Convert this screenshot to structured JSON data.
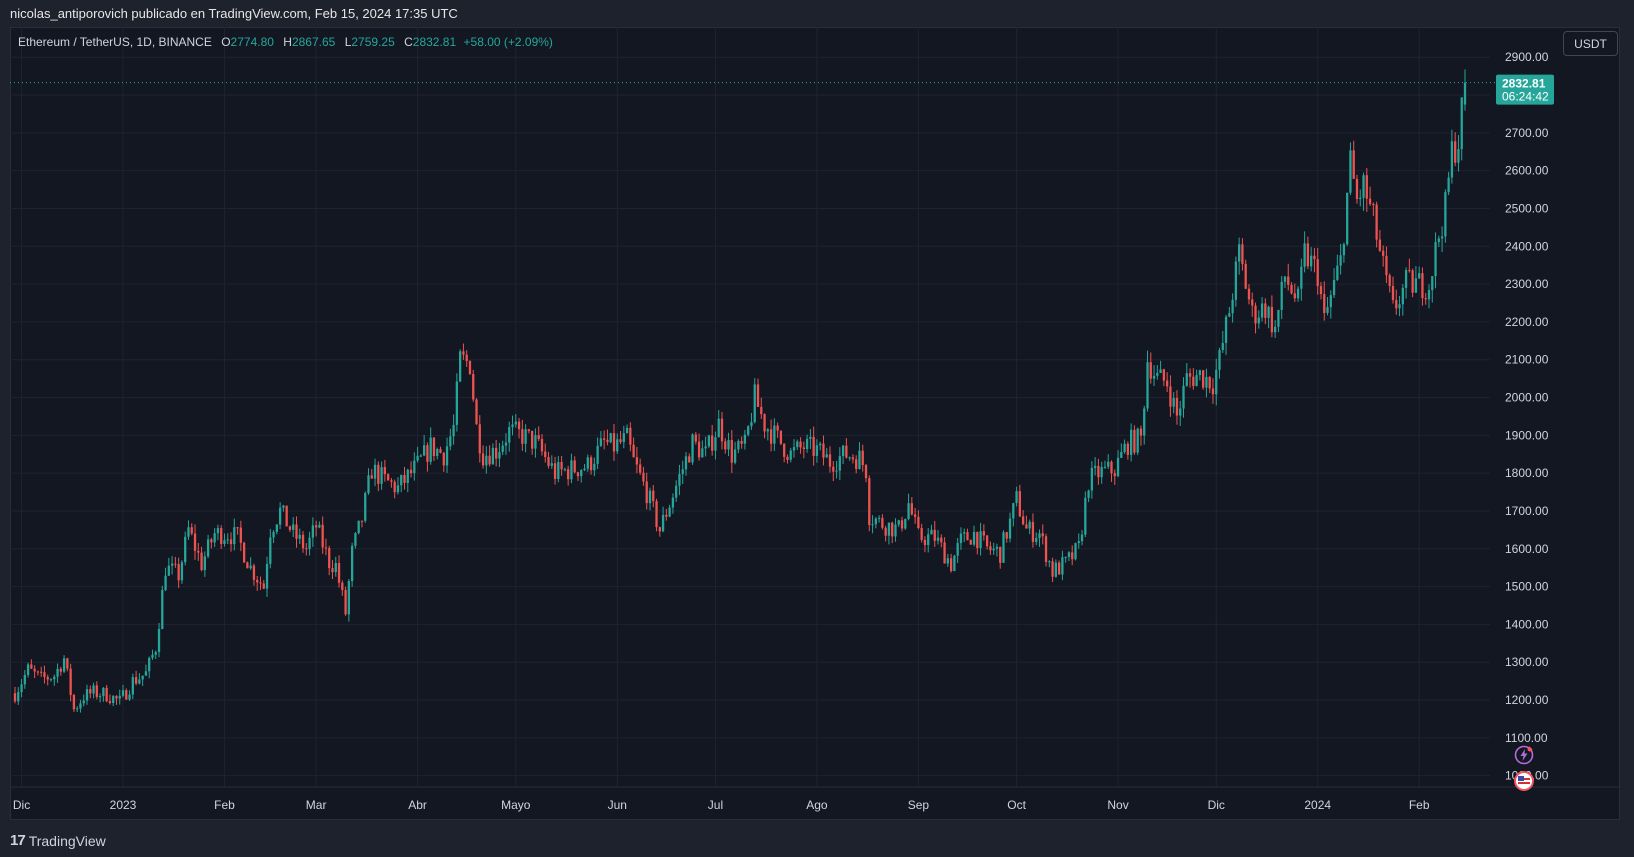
{
  "header": {
    "publisher_line": "nicolas_antiporovich publicado en TradingView.com, Feb 15, 2024 17:35 UTC"
  },
  "legend": {
    "symbol": "Ethereum / TetherUS, 1D, BINANCE",
    "open_label": "O",
    "open_value": "2774.80",
    "high_label": "H",
    "high_value": "2867.65",
    "low_label": "L",
    "low_value": "2759.25",
    "close_label": "C",
    "close_value": "2832.81",
    "change": "+58.00 (+2.09%)"
  },
  "price_scale": {
    "currency": "USDT",
    "last_price": "2832.81",
    "countdown": "06:24:42"
  },
  "footer": {
    "brand": "TradingView",
    "brand_mark": "17"
  },
  "colors": {
    "up": "#26a69a",
    "down": "#ef5350",
    "background": "#131722",
    "grid": "#1e222d",
    "text": "#d1d4dc"
  },
  "icons": [
    "lightning-icon",
    "us-flag-icon"
  ],
  "chart_data": {
    "type": "candlestick",
    "ylim": [
      970,
      2980
    ],
    "y_ticks": [
      1000,
      1100,
      1200,
      1300,
      1400,
      1500,
      1600,
      1700,
      1800,
      1900,
      2000,
      2100,
      2200,
      2300,
      2400,
      2500,
      2600,
      2700,
      2800,
      2900
    ],
    "y_tick_labels": [
      "1000.00",
      "1100.00",
      "1200.00",
      "1300.00",
      "1400.00",
      "1500.00",
      "1600.00",
      "1700.00",
      "1800.00",
      "1900.00",
      "2000.00",
      "2100.00",
      "2200.00",
      "2300.00",
      "2400.00",
      "2500.00",
      "2600.00",
      "2700.00",
      "2800.00",
      "2900.00"
    ],
    "x_start": "2022-11-29",
    "x_end": "2024-02-15",
    "x_ticks": [
      {
        "label": "Dic",
        "date": "2022-12-01"
      },
      {
        "label": "2023",
        "date": "2023-01-01"
      },
      {
        "label": "Feb",
        "date": "2023-02-01"
      },
      {
        "label": "Mar",
        "date": "2023-03-01"
      },
      {
        "label": "Abr",
        "date": "2023-04-01"
      },
      {
        "label": "Mayo",
        "date": "2023-05-01"
      },
      {
        "label": "Jun",
        "date": "2023-06-01"
      },
      {
        "label": "Jul",
        "date": "2023-07-01"
      },
      {
        "label": "Ago",
        "date": "2023-08-01"
      },
      {
        "label": "Sep",
        "date": "2023-09-01"
      },
      {
        "label": "Oct",
        "date": "2023-10-01"
      },
      {
        "label": "Nov",
        "date": "2023-11-01"
      },
      {
        "label": "Dic",
        "date": "2023-12-01"
      },
      {
        "label": "2024",
        "date": "2024-01-01"
      },
      {
        "label": "Feb",
        "date": "2024-02-01"
      }
    ],
    "last_close": 2832.81,
    "close_path": [
      [
        "2022-11-29",
        1218
      ],
      [
        "2022-12-03",
        1280
      ],
      [
        "2022-12-07",
        1255
      ],
      [
        "2022-12-11",
        1265
      ],
      [
        "2022-12-14",
        1310
      ],
      [
        "2022-12-17",
        1175
      ],
      [
        "2022-12-20",
        1210
      ],
      [
        "2022-12-23",
        1220
      ],
      [
        "2022-12-27",
        1215
      ],
      [
        "2022-12-31",
        1195
      ],
      [
        "2023-01-04",
        1250
      ],
      [
        "2023-01-08",
        1270
      ],
      [
        "2023-01-11",
        1340
      ],
      [
        "2023-01-14",
        1550
      ],
      [
        "2023-01-18",
        1530
      ],
      [
        "2023-01-21",
        1650
      ],
      [
        "2023-01-25",
        1560
      ],
      [
        "2023-01-29",
        1640
      ],
      [
        "2023-02-02",
        1640
      ],
      [
        "2023-02-05",
        1630
      ],
      [
        "2023-02-09",
        1550
      ],
      [
        "2023-02-13",
        1500
      ],
      [
        "2023-02-15",
        1650
      ],
      [
        "2023-02-18",
        1700
      ],
      [
        "2023-02-22",
        1640
      ],
      [
        "2023-02-26",
        1600
      ],
      [
        "2023-03-01",
        1660
      ],
      [
        "2023-03-05",
        1565
      ],
      [
        "2023-03-07",
        1555
      ],
      [
        "2023-03-10",
        1430
      ],
      [
        "2023-03-12",
        1590
      ],
      [
        "2023-03-15",
        1680
      ],
      [
        "2023-03-18",
        1810
      ],
      [
        "2023-03-22",
        1780
      ],
      [
        "2023-03-26",
        1760
      ],
      [
        "2023-03-29",
        1790
      ],
      [
        "2023-04-01",
        1820
      ],
      [
        "2023-04-05",
        1870
      ],
      [
        "2023-04-09",
        1850
      ],
      [
        "2023-04-12",
        1920
      ],
      [
        "2023-04-14",
        2100
      ],
      [
        "2023-04-17",
        2090
      ],
      [
        "2023-04-19",
        1920
      ],
      [
        "2023-04-21",
        1850
      ],
      [
        "2023-04-25",
        1860
      ],
      [
        "2023-04-29",
        1910
      ],
      [
        "2023-05-03",
        1900
      ],
      [
        "2023-05-07",
        1880
      ],
      [
        "2023-05-10",
        1840
      ],
      [
        "2023-05-13",
        1800
      ],
      [
        "2023-05-18",
        1810
      ],
      [
        "2023-05-23",
        1820
      ],
      [
        "2023-05-28",
        1880
      ],
      [
        "2023-05-31",
        1870
      ],
      [
        "2023-06-04",
        1890
      ],
      [
        "2023-06-06",
        1830
      ],
      [
        "2023-06-10",
        1750
      ],
      [
        "2023-06-14",
        1650
      ],
      [
        "2023-06-17",
        1720
      ],
      [
        "2023-06-20",
        1790
      ],
      [
        "2023-06-24",
        1880
      ],
      [
        "2023-06-28",
        1850
      ],
      [
        "2023-07-02",
        1930
      ],
      [
        "2023-07-06",
        1850
      ],
      [
        "2023-07-10",
        1870
      ],
      [
        "2023-07-13",
        2000
      ],
      [
        "2023-07-16",
        1930
      ],
      [
        "2023-07-20",
        1890
      ],
      [
        "2023-07-24",
        1850
      ],
      [
        "2023-07-28",
        1870
      ],
      [
        "2023-08-01",
        1860
      ],
      [
        "2023-08-05",
        1830
      ],
      [
        "2023-08-10",
        1850
      ],
      [
        "2023-08-14",
        1840
      ],
      [
        "2023-08-16",
        1810
      ],
      [
        "2023-08-17",
        1690
      ],
      [
        "2023-08-20",
        1670
      ],
      [
        "2023-08-26",
        1650
      ],
      [
        "2023-08-29",
        1720
      ],
      [
        "2023-09-01",
        1630
      ],
      [
        "2023-09-06",
        1630
      ],
      [
        "2023-09-11",
        1560
      ],
      [
        "2023-09-14",
        1620
      ],
      [
        "2023-09-18",
        1640
      ],
      [
        "2023-09-22",
        1600
      ],
      [
        "2023-09-26",
        1590
      ],
      [
        "2023-09-29",
        1670
      ],
      [
        "2023-10-01",
        1730
      ],
      [
        "2023-10-04",
        1650
      ],
      [
        "2023-10-08",
        1640
      ],
      [
        "2023-10-12",
        1540
      ],
      [
        "2023-10-16",
        1560
      ],
      [
        "2023-10-20",
        1600
      ],
      [
        "2023-10-23",
        1780
      ],
      [
        "2023-10-26",
        1800
      ],
      [
        "2023-10-31",
        1810
      ],
      [
        "2023-11-04",
        1880
      ],
      [
        "2023-11-08",
        1890
      ],
      [
        "2023-11-10",
        2100
      ],
      [
        "2023-11-13",
        2050
      ],
      [
        "2023-11-16",
        2040
      ],
      [
        "2023-11-19",
        1950
      ],
      [
        "2023-11-22",
        2050
      ],
      [
        "2023-11-26",
        2060
      ],
      [
        "2023-11-30",
        2040
      ],
      [
        "2023-12-02",
        2100
      ],
      [
        "2023-12-05",
        2230
      ],
      [
        "2023-12-08",
        2380
      ],
      [
        "2023-12-12",
        2220
      ],
      [
        "2023-12-16",
        2240
      ],
      [
        "2023-12-19",
        2180
      ],
      [
        "2023-12-22",
        2320
      ],
      [
        "2023-12-26",
        2250
      ],
      [
        "2023-12-28",
        2380
      ],
      [
        "2024-01-01",
        2330
      ],
      [
        "2024-01-03",
        2200
      ],
      [
        "2024-01-08",
        2360
      ],
      [
        "2024-01-11",
        2620
      ],
      [
        "2024-01-13",
        2520
      ],
      [
        "2024-01-15",
        2560
      ],
      [
        "2024-01-18",
        2470
      ],
      [
        "2024-01-22",
        2300
      ],
      [
        "2024-01-24",
        2230
      ],
      [
        "2024-01-28",
        2300
      ],
      [
        "2024-02-01",
        2300
      ],
      [
        "2024-02-04",
        2300
      ],
      [
        "2024-02-07",
        2430
      ],
      [
        "2024-02-09",
        2500
      ],
      [
        "2024-02-11",
        2650
      ],
      [
        "2024-02-13",
        2680
      ],
      [
        "2024-02-15",
        2832.81
      ]
    ]
  }
}
